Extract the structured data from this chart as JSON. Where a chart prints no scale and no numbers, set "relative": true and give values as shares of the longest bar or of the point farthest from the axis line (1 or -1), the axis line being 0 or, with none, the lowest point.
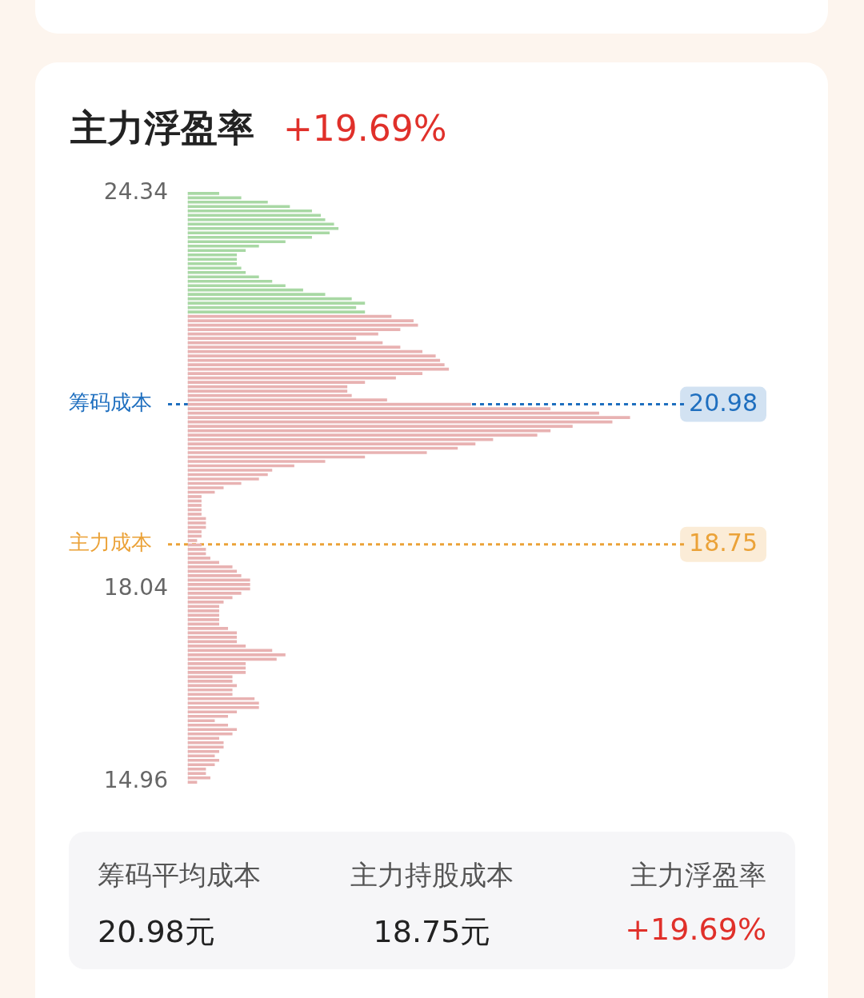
{
  "chart_data": {
    "type": "bar",
    "orientation": "horizontal",
    "relative": true,
    "title": "主力浮盈率",
    "subtitle": "+19.69%",
    "x": [
      24.34,
      24.27,
      24.2,
      24.13,
      24.06,
      23.99,
      23.92,
      23.85,
      23.78,
      23.71,
      23.64,
      23.57,
      23.5,
      23.43,
      23.36,
      23.29,
      23.22,
      23.15,
      23.08,
      23.01,
      22.94,
      22.87,
      22.8,
      22.73,
      22.66,
      22.59,
      22.52,
      22.45,
      22.38,
      22.31,
      22.24,
      22.17,
      22.1,
      22.03,
      21.96,
      21.89,
      21.82,
      21.75,
      21.68,
      21.61,
      21.54,
      21.47,
      21.4,
      21.33,
      21.26,
      21.19,
      21.12,
      21.05,
      20.98,
      20.91,
      20.84,
      20.77,
      20.7,
      20.63,
      20.56,
      20.49,
      20.42,
      20.35,
      20.28,
      20.21,
      20.14,
      20.07,
      20.0,
      19.93,
      19.86,
      19.79,
      19.72,
      19.65,
      19.58,
      19.51,
      19.44,
      19.37,
      19.3,
      19.23,
      19.16,
      19.09,
      19.02,
      18.95,
      18.88,
      18.81,
      18.74,
      18.67,
      18.6,
      18.53,
      18.46,
      18.39,
      18.32,
      18.25,
      18.18,
      18.11,
      18.04,
      17.97,
      17.9,
      17.83,
      17.76,
      17.69,
      17.62,
      17.55,
      17.48,
      17.41,
      17.34,
      17.27,
      17.2,
      17.13,
      17.06,
      16.99,
      16.92,
      16.85,
      16.78,
      16.71,
      16.64,
      16.57,
      16.5,
      16.43,
      16.36,
      16.29,
      16.22,
      16.15,
      16.08,
      16.01,
      15.94,
      15.87,
      15.8,
      15.73,
      15.66,
      15.59,
      15.52,
      15.45,
      15.38,
      15.31,
      15.24,
      15.17,
      15.1,
      15.03,
      14.96
    ],
    "values": [
      0.07,
      0.12,
      0.18,
      0.23,
      0.28,
      0.3,
      0.31,
      0.33,
      0.34,
      0.32,
      0.28,
      0.22,
      0.16,
      0.13,
      0.11,
      0.11,
      0.11,
      0.12,
      0.13,
      0.16,
      0.19,
      0.22,
      0.26,
      0.31,
      0.37,
      0.4,
      0.38,
      0.4,
      0.46,
      0.51,
      0.52,
      0.48,
      0.43,
      0.38,
      0.44,
      0.48,
      0.53,
      0.56,
      0.57,
      0.58,
      0.59,
      0.53,
      0.47,
      0.4,
      0.36,
      0.36,
      0.37,
      0.45,
      0.64,
      0.82,
      0.93,
      1,
      0.96,
      0.87,
      0.82,
      0.79,
      0.69,
      0.65,
      0.61,
      0.54,
      0.4,
      0.31,
      0.24,
      0.19,
      0.18,
      0.16,
      0.12,
      0.08,
      0.06,
      0.03,
      0.03,
      0.03,
      0.03,
      0.03,
      0.04,
      0.04,
      0.04,
      0.03,
      0.03,
      0.02,
      0.03,
      0.04,
      0.04,
      0.05,
      0.07,
      0.1,
      0.11,
      0.12,
      0.14,
      0.14,
      0.14,
      0.12,
      0.1,
      0.08,
      0.07,
      0.07,
      0.07,
      0.07,
      0.07,
      0.09,
      0.11,
      0.11,
      0.11,
      0.13,
      0.19,
      0.22,
      0.2,
      0.13,
      0.13,
      0.13,
      0.1,
      0.1,
      0.11,
      0.1,
      0.1,
      0.15,
      0.16,
      0.16,
      0.11,
      0.09,
      0.06,
      0.09,
      0.11,
      0.1,
      0.07,
      0.08,
      0.08,
      0.07,
      0.06,
      0.07,
      0.06,
      0.04,
      0.04,
      0.05,
      0.02
    ],
    "colors": [
      "#a8d8a4",
      "#a8d8a4",
      "#a8d8a4",
      "#a8d8a4",
      "#a8d8a4",
      "#a8d8a4",
      "#a8d8a4",
      "#a8d8a4",
      "#a8d8a4",
      "#a8d8a4",
      "#a8d8a4",
      "#a8d8a4",
      "#a8d8a4",
      "#a8d8a4",
      "#a8d8a4",
      "#a8d8a4",
      "#a8d8a4",
      "#a8d8a4",
      "#a8d8a4",
      "#a8d8a4",
      "#a8d8a4",
      "#a8d8a4",
      "#a8d8a4",
      "#a8d8a4",
      "#a8d8a4",
      "#a8d8a4",
      "#a8d8a4",
      "#a8d8a4",
      "#e8b2b2",
      "#e8b2b2",
      "#e8b2b2",
      "#e8b2b2",
      "#e8b2b2",
      "#e8b2b2",
      "#e8b2b2",
      "#e8b2b2",
      "#e8b2b2",
      "#e8b2b2",
      "#e8b2b2",
      "#e8b2b2",
      "#e8b2b2",
      "#e8b2b2",
      "#e8b2b2",
      "#e8b2b2",
      "#e8b2b2",
      "#e8b2b2",
      "#e8b2b2",
      "#e8b2b2",
      "#e8b2b2",
      "#e8b2b2",
      "#e8b2b2",
      "#e8b2b2",
      "#e8b2b2",
      "#e8b2b2",
      "#e8b2b2",
      "#e8b2b2",
      "#e8b2b2",
      "#e8b2b2",
      "#e8b2b2",
      "#e8b2b2",
      "#e8b2b2",
      "#e8b2b2",
      "#e8b2b2",
      "#e8b2b2",
      "#e8b2b2",
      "#e8b2b2",
      "#e8b2b2",
      "#e8b2b2",
      "#e8b2b2",
      "#e8b2b2",
      "#e8b2b2",
      "#e8b2b2",
      "#e8b2b2",
      "#e8b2b2",
      "#e8b2b2",
      "#e8b2b2",
      "#e8b2b2",
      "#e8b2b2",
      "#e8b2b2",
      "#e8b2b2",
      "#e8b2b2",
      "#e8b2b2",
      "#e8b2b2",
      "#e8b2b2",
      "#e8b2b2",
      "#e8b2b2",
      "#e8b2b2",
      "#e8b2b2",
      "#e8b2b2",
      "#e8b2b2",
      "#e8b2b2",
      "#e8b2b2",
      "#e8b2b2",
      "#e8b2b2",
      "#e8b2b2",
      "#e8b2b2",
      "#e8b2b2",
      "#e8b2b2",
      "#e8b2b2",
      "#e8b2b2",
      "#e8b2b2",
      "#e8b2b2",
      "#e8b2b2",
      "#e8b2b2",
      "#e8b2b2",
      "#e8b2b2",
      "#e8b2b2",
      "#e8b2b2",
      "#e8b2b2",
      "#e8b2b2",
      "#e8b2b2",
      "#e8b2b2",
      "#e8b2b2",
      "#e8b2b2",
      "#e8b2b2",
      "#e8b2b2",
      "#e8b2b2",
      "#e8b2b2",
      "#e8b2b2",
      "#e8b2b2",
      "#e8b2b2",
      "#e8b2b2",
      "#e8b2b2",
      "#e8b2b2",
      "#e8b2b2",
      "#e8b2b2",
      "#e8b2b2",
      "#e8b2b2",
      "#e8b2b2",
      "#e8b2b2",
      "#e8b2b2",
      "#e8b2b2",
      "#e8b2b2",
      "#e8b2b2",
      "#e8b2b2"
    ],
    "ylim": [
      14.96,
      24.34
    ],
    "yticks": [
      24.34,
      18.04,
      14.96
    ],
    "ref_lines": [
      {
        "axis": "y",
        "value": 20.98,
        "label": "筹码成本",
        "color": "#1f6fbf",
        "line_style": "dotted"
      },
      {
        "axis": "y",
        "value": 18.75,
        "label": "主力成本",
        "color": "#eba238",
        "line_style": "dotted"
      }
    ],
    "annotations": [
      "筹码平均成本",
      "20.98元",
      "主力持股成本",
      "18.75元",
      "主力浮盈率",
      "+19.69%",
      "20.98",
      "18.75"
    ],
    "grid": false,
    "legend": false
  }
}
